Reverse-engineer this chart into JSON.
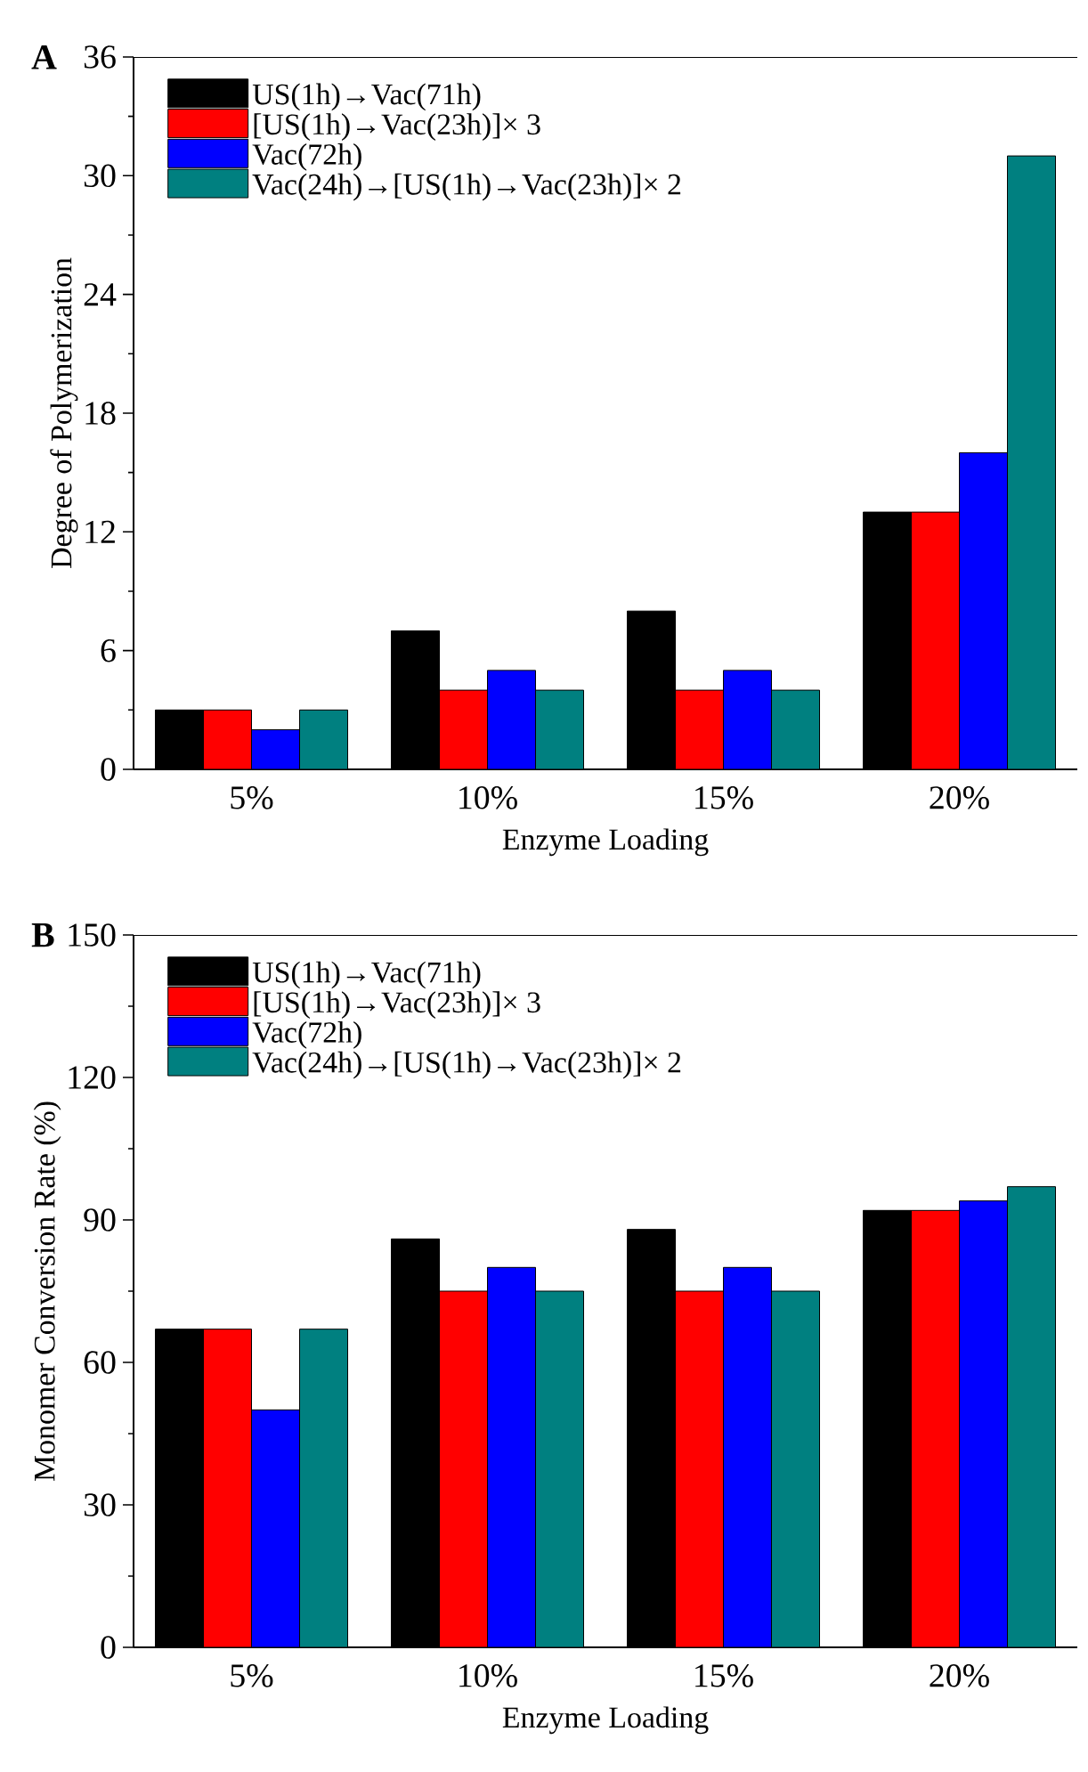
{
  "chart_data": [
    {
      "type": "bar",
      "title": "A",
      "xlabel": "Enzyme Loading",
      "ylabel": "Degree of Polymerization",
      "categories": [
        "5%",
        "10%",
        "15%",
        "20%"
      ],
      "ylim": [
        0,
        36
      ],
      "yticks": [
        0,
        6,
        12,
        18,
        24,
        30,
        36
      ],
      "legend": "top left",
      "series": [
        {
          "name": "US(1h)→Vac(71h)",
          "color": "#000000",
          "values": [
            3,
            7,
            8,
            13
          ]
        },
        {
          "name": "[US(1h)→Vac(23h)]× 3",
          "color": "#ff0000",
          "values": [
            3,
            4,
            4,
            13
          ]
        },
        {
          "name": "Vac(72h)",
          "color": "#0000ff",
          "values": [
            2,
            5,
            5,
            16
          ]
        },
        {
          "name": "Vac(24h)→[US(1h)→Vac(23h)]× 2",
          "color": "#008080",
          "values": [
            3,
            4,
            4,
            31
          ]
        }
      ]
    },
    {
      "type": "bar",
      "title": "B",
      "xlabel": "Enzyme Loading",
      "ylabel": "Monomer Conversion  Rate (%)",
      "categories": [
        "5%",
        "10%",
        "15%",
        "20%"
      ],
      "ylim": [
        0,
        150
      ],
      "yticks": [
        0,
        30,
        60,
        90,
        120,
        150
      ],
      "legend": "top left",
      "series": [
        {
          "name": "US(1h)→Vac(71h)",
          "color": "#000000",
          "values": [
            67,
            86,
            88,
            92
          ]
        },
        {
          "name": "[US(1h)→Vac(23h)]× 3",
          "color": "#ff0000",
          "values": [
            67,
            75,
            75,
            92
          ]
        },
        {
          "name": "Vac(72h)",
          "color": "#0000ff",
          "values": [
            50,
            80,
            80,
            94
          ]
        },
        {
          "name": "Vac(24h)→[US(1h)→Vac(23h)]× 2",
          "color": "#008080",
          "values": [
            67,
            75,
            75,
            97
          ]
        }
      ]
    }
  ]
}
